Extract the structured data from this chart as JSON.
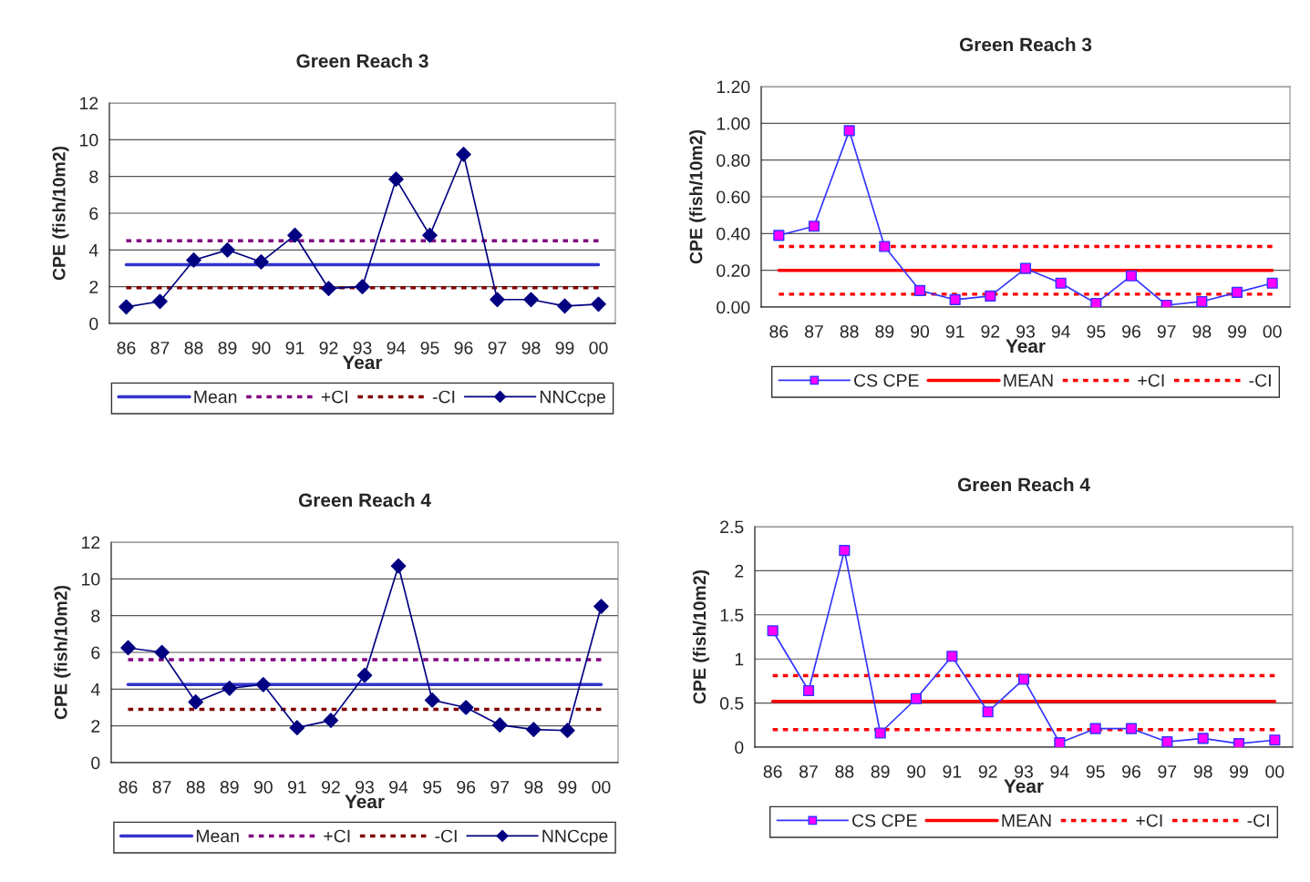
{
  "chart_data": [
    {
      "type": "line",
      "title": "Green Reach 3",
      "xlabel": "Year",
      "ylabel": "CPE (fish/10m2)",
      "categories": [
        "86",
        "87",
        "88",
        "89",
        "90",
        "91",
        "92",
        "93",
        "94",
        "95",
        "96",
        "97",
        "98",
        "99",
        "00"
      ],
      "ylim": [
        0,
        12
      ],
      "yticks": [
        0,
        2,
        4,
        6,
        8,
        10,
        12
      ],
      "grid": "y",
      "legend": "bottom",
      "series": [
        {
          "name": "Mean",
          "color": "#3333cc",
          "line_style": "solid",
          "marker": "none",
          "values": [
            3.2,
            3.2,
            3.2,
            3.2,
            3.2,
            3.2,
            3.2,
            3.2,
            3.2,
            3.2,
            3.2,
            3.2,
            3.2,
            3.2,
            3.2
          ]
        },
        {
          "name": "+CI",
          "color": "#800080",
          "line_style": "dashed",
          "marker": "none",
          "values": [
            4.5,
            4.5,
            4.5,
            4.5,
            4.5,
            4.5,
            4.5,
            4.5,
            4.5,
            4.5,
            4.5,
            4.5,
            4.5,
            4.5,
            4.5
          ]
        },
        {
          "name": "-CI",
          "color": "#800000",
          "line_style": "dashed",
          "marker": "none",
          "values": [
            1.95,
            1.95,
            1.95,
            1.95,
            1.95,
            1.95,
            1.95,
            1.95,
            1.95,
            1.95,
            1.95,
            1.95,
            1.95,
            1.95,
            1.95
          ]
        },
        {
          "name": "NNCcpe",
          "color": "#000080",
          "line_style": "solid",
          "marker": "diamond",
          "values": [
            0.9,
            1.2,
            3.45,
            4.0,
            3.35,
            4.8,
            1.9,
            2.0,
            7.85,
            4.8,
            9.2,
            1.3,
            1.3,
            0.95,
            1.05
          ]
        }
      ]
    },
    {
      "type": "line",
      "title": "Green Reach 3",
      "xlabel": "Year",
      "ylabel": "CPE (fish/10m2)",
      "categories": [
        "86",
        "87",
        "88",
        "89",
        "90",
        "91",
        "92",
        "93",
        "94",
        "95",
        "96",
        "97",
        "98",
        "99",
        "00"
      ],
      "ylim": [
        0,
        1.2
      ],
      "yticks": [
        {
          "value": 0,
          "label": "0.00"
        },
        {
          "value": 0.2,
          "label": "0.20"
        },
        {
          "value": 0.4,
          "label": "0.40"
        },
        {
          "value": 0.6,
          "label": "0.60"
        },
        {
          "value": 0.8,
          "label": "0.80"
        },
        {
          "value": 1.0,
          "label": "1.00"
        },
        {
          "value": 1.2,
          "label": "1.20"
        }
      ],
      "grid": "y",
      "legend": "bottom",
      "series": [
        {
          "name": "CS CPE",
          "color": "#3333ff",
          "colors": [
            "#ff00ff",
            "#ff00ff",
            "#ff00ff",
            "#ff00ff",
            "#ff00ff",
            "#ff00ff",
            "#ff00ff",
            "#ff00ff",
            "#ff00ff",
            "#ff00ff",
            "#ff00ff",
            "#ff00ff",
            "#ff00ff",
            "#ff00ff",
            "#ff00ff"
          ],
          "line_style": "solid",
          "marker": "square",
          "values": [
            0.39,
            0.44,
            0.96,
            0.33,
            0.09,
            0.04,
            0.06,
            0.21,
            0.13,
            0.02,
            0.17,
            0.01,
            0.03,
            0.08,
            0.13
          ]
        },
        {
          "name": "MEAN",
          "color": "#ff0000",
          "line_style": "solid",
          "marker": "none",
          "values": [
            0.2,
            0.2,
            0.2,
            0.2,
            0.2,
            0.2,
            0.2,
            0.2,
            0.2,
            0.2,
            0.2,
            0.2,
            0.2,
            0.2,
            0.2
          ]
        },
        {
          "name": "+CI",
          "color": "#ff0000",
          "line_style": "dashed",
          "marker": "none",
          "values": [
            0.33,
            0.33,
            0.33,
            0.33,
            0.33,
            0.33,
            0.33,
            0.33,
            0.33,
            0.33,
            0.33,
            0.33,
            0.33,
            0.33,
            0.33
          ]
        },
        {
          "name": "-CI",
          "color": "#ff0000",
          "line_style": "dashed",
          "marker": "none",
          "values": [
            0.07,
            0.07,
            0.07,
            0.07,
            0.07,
            0.07,
            0.07,
            0.07,
            0.07,
            0.07,
            0.07,
            0.07,
            0.07,
            0.07,
            0.07
          ]
        }
      ]
    },
    {
      "type": "line",
      "title": "Green Reach 4",
      "xlabel": "Year",
      "ylabel": "CPE (fish/10m2)",
      "categories": [
        "86",
        "87",
        "88",
        "89",
        "90",
        "91",
        "92",
        "93",
        "94",
        "95",
        "96",
        "97",
        "98",
        "99",
        "00"
      ],
      "ylim": [
        0,
        12
      ],
      "yticks": [
        0,
        2,
        4,
        6,
        8,
        10,
        12
      ],
      "grid": "y",
      "legend": "bottom",
      "series": [
        {
          "name": "Mean",
          "color": "#3333cc",
          "line_style": "solid",
          "marker": "none",
          "values": [
            4.25,
            4.25,
            4.25,
            4.25,
            4.25,
            4.25,
            4.25,
            4.25,
            4.25,
            4.25,
            4.25,
            4.25,
            4.25,
            4.25,
            4.25
          ]
        },
        {
          "name": "+CI",
          "color": "#800080",
          "line_style": "dashed",
          "marker": "none",
          "values": [
            5.6,
            5.6,
            5.6,
            5.6,
            5.6,
            5.6,
            5.6,
            5.6,
            5.6,
            5.6,
            5.6,
            5.6,
            5.6,
            5.6,
            5.6
          ]
        },
        {
          "name": "-CI",
          "color": "#800000",
          "line_style": "dashed",
          "marker": "none",
          "values": [
            2.9,
            2.9,
            2.9,
            2.9,
            2.9,
            2.9,
            2.9,
            2.9,
            2.9,
            2.9,
            2.9,
            2.9,
            2.9,
            2.9,
            2.9
          ]
        },
        {
          "name": "NNCcpe",
          "color": "#000080",
          "line_style": "solid",
          "marker": "diamond",
          "values": [
            6.25,
            6.0,
            3.3,
            4.05,
            4.25,
            1.9,
            2.3,
            4.75,
            10.7,
            3.4,
            3.0,
            2.05,
            1.8,
            1.75,
            8.5
          ]
        }
      ]
    },
    {
      "type": "line",
      "title": "Green Reach 4",
      "xlabel": "Year",
      "ylabel": "CPE (fish/10m2)",
      "categories": [
        "86",
        "87",
        "88",
        "89",
        "90",
        "91",
        "92",
        "93",
        "94",
        "95",
        "96",
        "97",
        "98",
        "99",
        "00"
      ],
      "ylim": [
        0,
        2.5
      ],
      "yticks": [
        0,
        0.5,
        1,
        1.5,
        2,
        2.5
      ],
      "grid": "y",
      "legend": "bottom",
      "series": [
        {
          "name": "CS CPE",
          "color": "#3333ff",
          "colors": [
            "#ff00ff",
            "#ff00ff",
            "#ff00ff",
            "#ff00ff",
            "#ff00ff",
            "#ff00ff",
            "#ff00ff",
            "#ff00ff",
            "#ff00ff",
            "#ff00ff",
            "#ff00ff",
            "#ff00ff",
            "#ff00ff",
            "#ff00ff",
            "#ff00ff"
          ],
          "line_style": "solid",
          "marker": "square",
          "values": [
            1.32,
            0.64,
            2.23,
            0.16,
            0.55,
            1.03,
            0.4,
            0.77,
            0.05,
            0.21,
            0.21,
            0.06,
            0.1,
            0.04,
            0.08
          ]
        },
        {
          "name": "MEAN",
          "color": "#ff0000",
          "line_style": "solid",
          "marker": "none",
          "values": [
            0.52,
            0.52,
            0.52,
            0.52,
            0.52,
            0.52,
            0.52,
            0.52,
            0.52,
            0.52,
            0.52,
            0.52,
            0.52,
            0.52,
            0.52
          ]
        },
        {
          "name": "+CI",
          "color": "#ff0000",
          "line_style": "dashed",
          "marker": "none",
          "values": [
            0.81,
            0.81,
            0.81,
            0.81,
            0.81,
            0.81,
            0.81,
            0.81,
            0.81,
            0.81,
            0.81,
            0.81,
            0.81,
            0.81,
            0.81
          ]
        },
        {
          "name": "-CI",
          "color": "#ff0000",
          "line_style": "dashed",
          "marker": "none",
          "values": [
            0.2,
            0.2,
            0.2,
            0.2,
            0.2,
            0.2,
            0.2,
            0.2,
            0.2,
            0.2,
            0.2,
            0.2,
            0.2,
            0.2,
            0.2
          ]
        }
      ]
    }
  ]
}
